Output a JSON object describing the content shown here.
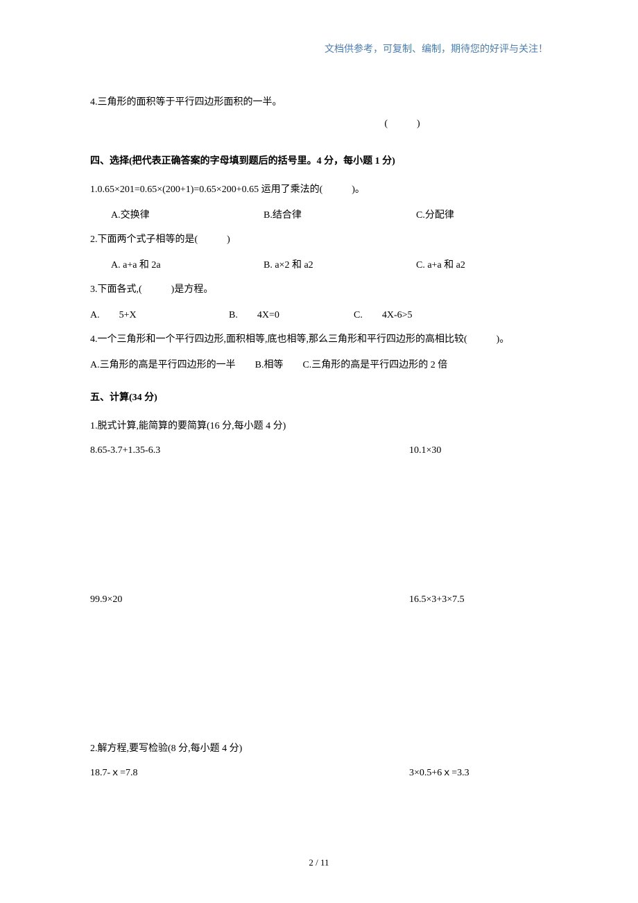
{
  "header": {
    "note": "文档供参考，可复制、编制，期待您的好评与关注！",
    "note_color": "#4a7db5"
  },
  "sec3_q4": {
    "text": "4.三角形的面积等于平行四边形面积的一半。",
    "paren": "(　　　)"
  },
  "sec4": {
    "title": "四、选择(把代表正确答案的字母填到题后的括号里。4 分，每小题 1 分)",
    "q1": {
      "text": "1.0.65×201=0.65×(200+1)=0.65×200+0.65 运用了乘法的(　　　)。",
      "a": "A.交换律",
      "b": "B.结合律",
      "c": "C.分配律"
    },
    "q2": {
      "text": "2.下面两个式子相等的是(　　　)",
      "a": "A.  a+a 和 2a",
      "b": "B.  a×2 和 a2",
      "c": "C.  a+a 和 a2"
    },
    "q3": {
      "text": "3.下面各式,(　　　)是方程。",
      "a": "A.　　5+X",
      "b": "B.　　4X=0",
      "c": "C.　　4X-6>5"
    },
    "q4": {
      "text": "4.一个三角形和一个平行四边形,面积相等,底也相等,那么三角形和平行四边形的高相比较(　　　)。",
      "options": "A.三角形的高是平行四边形的一半　　B.相等　　C.三角形的高是平行四边形的 2 倍"
    }
  },
  "sec5": {
    "title": "五、计算(34 分)",
    "p1": {
      "heading": "1.脱式计算,能简算的要简算(16 分,每小题 4 分)",
      "r1_left": "8.65-3.7+1.35-6.3",
      "r1_right": "10.1×30",
      "r2_left": "99.9×20",
      "r2_right": "16.5×3+3×7.5"
    },
    "p2": {
      "heading": "2.解方程,要写检验(8 分,每小题 4 分)",
      "r1_left": "18.7-ｘ=7.8",
      "r1_right": "3×0.5+6ｘ=3.3"
    }
  },
  "footer": {
    "page": "2 / 11"
  },
  "colors": {
    "text": "#000000",
    "background": "#ffffff"
  }
}
